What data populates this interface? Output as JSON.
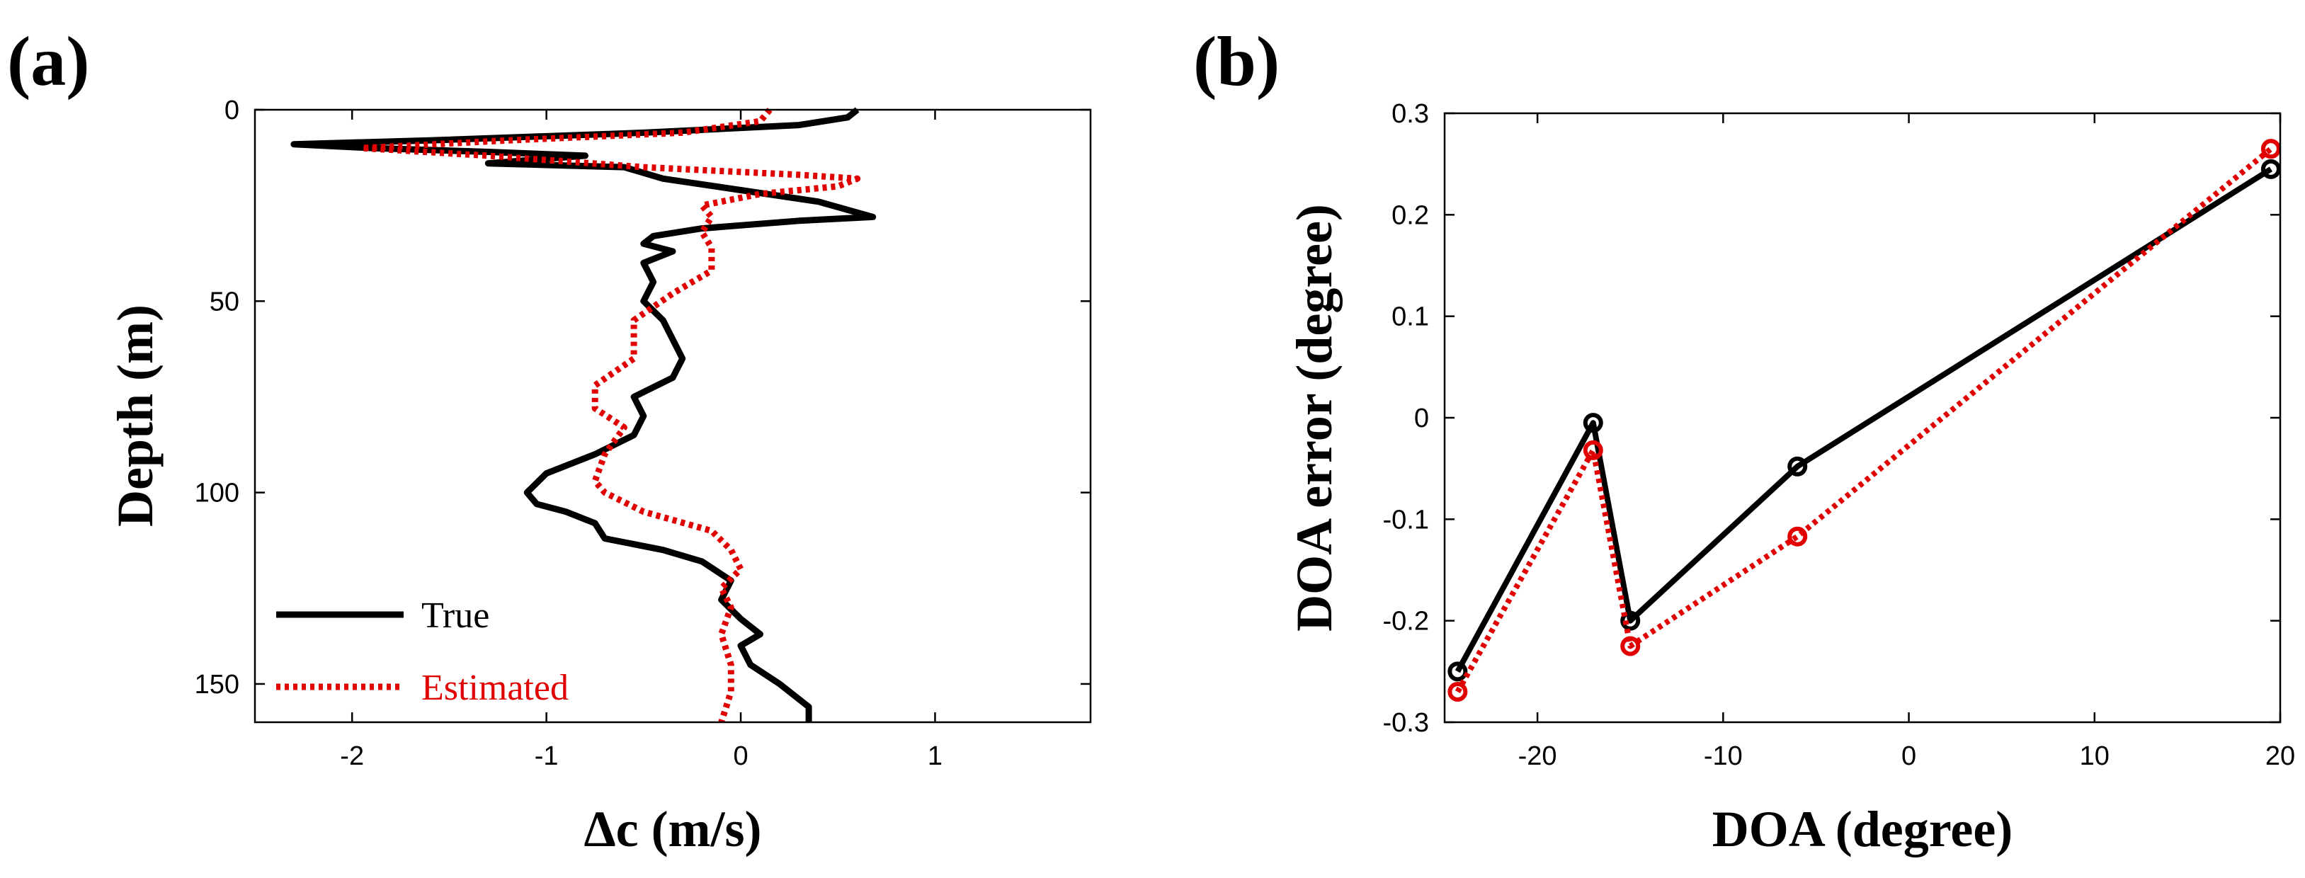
{
  "chart_data": [
    {
      "panel": "(a)",
      "type": "line",
      "title": "",
      "xlabel": "Δc (m/s)",
      "ylabel": "Depth (m)",
      "xlim": [
        -2.5,
        1.8
      ],
      "ylim": [
        0,
        160
      ],
      "y_reversed": true,
      "xticks": [
        -2,
        -1,
        0,
        1
      ],
      "xtick_labels": [
        "-2",
        "-1",
        "0",
        "1"
      ],
      "yticks": [
        0,
        50,
        100,
        150
      ],
      "ytick_labels": [
        "0",
        "50",
        "100",
        "150"
      ],
      "grid": false,
      "legend_position": "bottom-left",
      "series": [
        {
          "name": "True",
          "color": "#000000",
          "style": "solid",
          "points": [
            [
              0.6,
              0
            ],
            [
              0.55,
              2
            ],
            [
              0.3,
              4
            ],
            [
              -0.5,
              6
            ],
            [
              -1.6,
              8
            ],
            [
              -2.3,
              9
            ],
            [
              -1.9,
              10
            ],
            [
              -1.3,
              11
            ],
            [
              -0.8,
              12
            ],
            [
              -1.3,
              14
            ],
            [
              -0.6,
              15
            ],
            [
              -0.4,
              18
            ],
            [
              0.0,
              21
            ],
            [
              0.4,
              24
            ],
            [
              0.68,
              28
            ],
            [
              0.3,
              29
            ],
            [
              -0.2,
              31
            ],
            [
              -0.45,
              33
            ],
            [
              -0.5,
              35
            ],
            [
              -0.35,
              37
            ],
            [
              -0.5,
              40
            ],
            [
              -0.45,
              45
            ],
            [
              -0.5,
              50
            ],
            [
              -0.4,
              55
            ],
            [
              -0.35,
              60
            ],
            [
              -0.3,
              65
            ],
            [
              -0.35,
              70
            ],
            [
              -0.55,
              75
            ],
            [
              -0.5,
              80
            ],
            [
              -0.55,
              85
            ],
            [
              -0.75,
              90
            ],
            [
              -1.0,
              95
            ],
            [
              -1.1,
              100
            ],
            [
              -1.05,
              103
            ],
            [
              -0.9,
              105
            ],
            [
              -0.75,
              108
            ],
            [
              -0.7,
              112
            ],
            [
              -0.4,
              115
            ],
            [
              -0.2,
              118
            ],
            [
              -0.05,
              123
            ],
            [
              -0.1,
              128
            ],
            [
              0.0,
              133
            ],
            [
              0.1,
              137
            ],
            [
              0.0,
              140
            ],
            [
              0.05,
              145
            ],
            [
              0.2,
              150
            ],
            [
              0.35,
              156
            ],
            [
              0.35,
              160
            ]
          ]
        },
        {
          "name": "Estimated",
          "color": "#e00000",
          "style": "dotted",
          "points": [
            [
              0.15,
              0
            ],
            [
              0.1,
              3
            ],
            [
              -0.3,
              6
            ],
            [
              -1.2,
              8
            ],
            [
              -1.95,
              10
            ],
            [
              -1.3,
              12
            ],
            [
              -0.5,
              15
            ],
            [
              0.3,
              17
            ],
            [
              0.6,
              18
            ],
            [
              0.5,
              20
            ],
            [
              0.1,
              22
            ],
            [
              -0.2,
              25
            ],
            [
              -0.15,
              28
            ],
            [
              -0.2,
              32
            ],
            [
              -0.15,
              36
            ],
            [
              -0.15,
              42
            ],
            [
              -0.35,
              48
            ],
            [
              -0.55,
              55
            ],
            [
              -0.55,
              65
            ],
            [
              -0.75,
              72
            ],
            [
              -0.75,
              78
            ],
            [
              -0.6,
              83
            ],
            [
              -0.7,
              90
            ],
            [
              -0.75,
              97
            ],
            [
              -0.7,
              100
            ],
            [
              -0.5,
              105
            ],
            [
              -0.15,
              110
            ],
            [
              -0.05,
              115
            ],
            [
              0.0,
              120
            ],
            [
              -0.1,
              125
            ],
            [
              -0.05,
              130
            ],
            [
              -0.1,
              137
            ],
            [
              -0.05,
              145
            ],
            [
              -0.05,
              152
            ],
            [
              -0.1,
              160
            ]
          ]
        }
      ]
    },
    {
      "panel": "(b)",
      "type": "line",
      "title": "",
      "xlabel": "DOA (degree)",
      "ylabel": "DOA error (degree)",
      "xlim": [
        -25,
        20
      ],
      "ylim": [
        -0.3,
        0.3
      ],
      "xticks": [
        -20,
        -10,
        0,
        10,
        20
      ],
      "xtick_labels": [
        "-20",
        "-10",
        "0",
        "10",
        "20"
      ],
      "yticks": [
        -0.3,
        -0.2,
        -0.1,
        0,
        0.1,
        0.2,
        0.3
      ],
      "ytick_labels": [
        "-0.3",
        "-0.2",
        "-0.1",
        "0",
        "0.1",
        "0.2",
        "0.3"
      ],
      "grid": false,
      "series": [
        {
          "name": "True",
          "color": "#000000",
          "style": "solid",
          "marker": "circle",
          "points": [
            [
              -24.3,
              -0.25
            ],
            [
              -17.0,
              -0.005
            ],
            [
              -15.0,
              -0.2
            ],
            [
              -6.0,
              -0.048
            ],
            [
              19.5,
              0.245
            ]
          ]
        },
        {
          "name": "Estimated",
          "color": "#e00000",
          "style": "dotted",
          "marker": "circle",
          "points": [
            [
              -24.3,
              -0.27
            ],
            [
              -17.0,
              -0.032
            ],
            [
              -15.0,
              -0.225
            ],
            [
              -6.0,
              -0.117
            ],
            [
              19.5,
              0.265
            ]
          ]
        }
      ]
    }
  ]
}
